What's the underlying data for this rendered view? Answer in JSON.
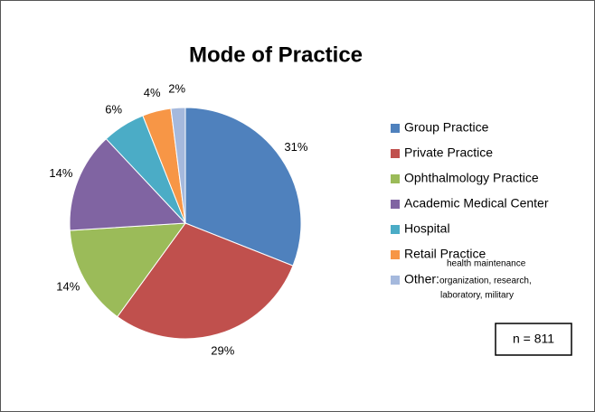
{
  "chart_data": {
    "type": "pie",
    "title": "Mode of Practice",
    "series": [
      {
        "name": "Group Practice",
        "color": "#4f81bd"
      },
      {
        "name": "Private Practice",
        "color": "#c0504d"
      },
      {
        "name": "Ophthalmology Practice",
        "color": "#9bbb59"
      },
      {
        "name": "Academic Medical Center",
        "color": "#8064a2"
      },
      {
        "name": "Hospital",
        "color": "#4bacc6"
      },
      {
        "name": "Retail Practice",
        "color": "#f79646"
      },
      {
        "name": "Other:",
        "color": "#a5b9dd"
      }
    ],
    "values": [
      31,
      29,
      14,
      14,
      6,
      4,
      2
    ],
    "value_labels": [
      "31%",
      "29%",
      "14%",
      "14%",
      "6%",
      "4%",
      "2%"
    ],
    "other_note": [
      "health maintenance",
      "organization, research,",
      "laboratory, military"
    ],
    "annotation": "n = 811",
    "legend": "right"
  }
}
